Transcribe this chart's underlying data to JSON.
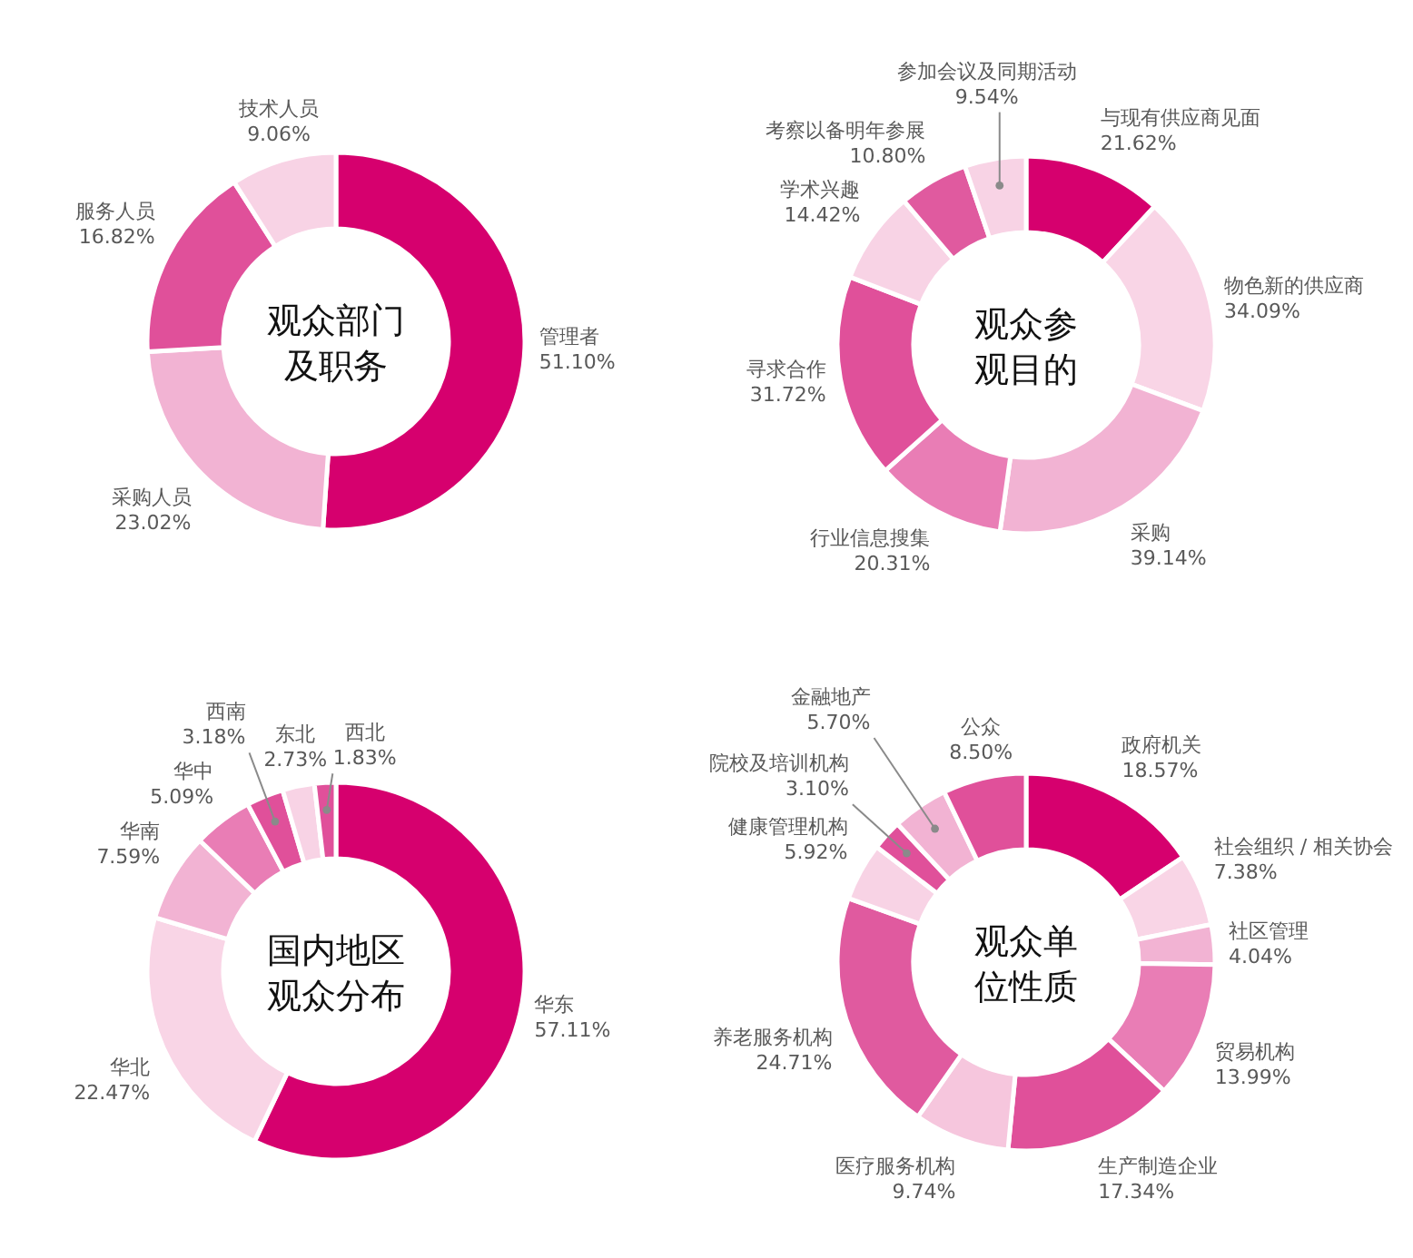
{
  "chart_data": [
    {
      "type": "donut",
      "title": "观众部门及职务",
      "categories": [
        "管理者",
        "采购人员",
        "服务人员",
        "技术人员"
      ],
      "values": [
        51.1,
        23.02,
        16.82,
        9.06
      ],
      "value_labels": [
        "51.10%",
        "23.02%",
        "16.82%",
        "9.06%"
      ],
      "colors": [
        "#d6006e",
        "#f2b3d3",
        "#e0509a",
        "#f8d3e5"
      ]
    },
    {
      "type": "donut",
      "title": "观众参观目的",
      "categories": [
        "与现有供应商见面",
        "物色新的供应商",
        "采购",
        "行业信息搜集",
        "寻求合作",
        "学术兴趣",
        "考察以备明年参展",
        "参加会议及同期活动"
      ],
      "values": [
        21.62,
        34.09,
        39.14,
        20.31,
        31.72,
        14.42,
        10.8,
        9.54
      ],
      "value_labels": [
        "21.62%",
        "34.09%",
        "39.14%",
        "20.31%",
        "31.72%",
        "14.42%",
        "10.80%",
        "9.54%"
      ],
      "colors": [
        "#d6006e",
        "#f9d5e6",
        "#f2b3d3",
        "#e97db5",
        "#e0509a",
        "#f8d3e5",
        "#e05a9f",
        "#f8d3e5"
      ]
    },
    {
      "type": "donut",
      "title": "国内地区观众分布",
      "categories": [
        "华东",
        "华北",
        "华南",
        "华中",
        "西南",
        "东北",
        "西北"
      ],
      "values": [
        57.11,
        22.47,
        7.59,
        5.09,
        3.18,
        2.73,
        1.83
      ],
      "value_labels": [
        "57.11%",
        "22.47%",
        "7.59%",
        "5.09%",
        "3.18%",
        "2.73%",
        "1.83%"
      ],
      "colors": [
        "#d6006e",
        "#f9d5e6",
        "#f2b3d3",
        "#e97db5",
        "#e0509a",
        "#f8d3e5",
        "#e0509a"
      ]
    },
    {
      "type": "donut",
      "title": "观众单位性质",
      "categories": [
        "政府机关",
        "社会组织 / 相关协会",
        "社区管理",
        "贸易机构",
        "生产制造企业",
        "医疗服务机构",
        "养老服务机构",
        "健康管理机构",
        "院校及培训机构",
        "金融地产",
        "公众"
      ],
      "values": [
        18.57,
        7.38,
        4.04,
        13.99,
        17.34,
        9.74,
        24.71,
        5.92,
        3.1,
        5.7,
        8.5
      ],
      "value_labels": [
        "18.57%",
        "7.38%",
        "4.04%",
        "13.99%",
        "17.34%",
        "9.74%",
        "24.71%",
        "5.92%",
        "3.10%",
        "5.70%",
        "8.50%"
      ],
      "colors": [
        "#d6006e",
        "#f9d5e6",
        "#f2b3d3",
        "#e97db5",
        "#e0509a",
        "#f6c6dd",
        "#e05a9f",
        "#f8d3e5",
        "#e0509a",
        "#f2b3d3",
        "#e0509a"
      ]
    }
  ]
}
